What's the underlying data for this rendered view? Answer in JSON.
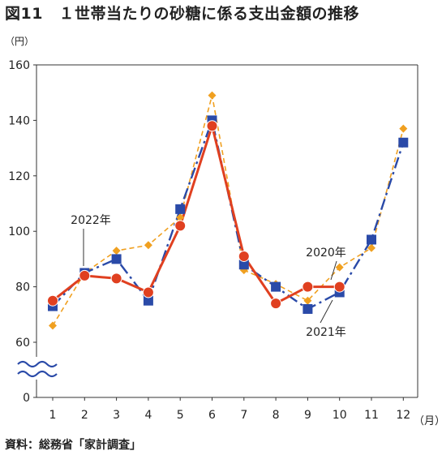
{
  "chart_data": {
    "type": "line",
    "title": "図11　１世帯当たりの砂糖に係る支出金額の推移",
    "y_unit": "（円）",
    "x_unit": "（月）",
    "source": "資料：総務省「家計調査」",
    "categories": [
      "1",
      "2",
      "3",
      "4",
      "5",
      "6",
      "7",
      "8",
      "9",
      "10",
      "11",
      "12"
    ],
    "y_ticks": [
      "0",
      "60",
      "80",
      "100",
      "120",
      "140",
      "160"
    ],
    "axis_break": true,
    "ylim": [
      60,
      160
    ],
    "grid": false,
    "series": [
      {
        "name": "2020年",
        "color": "#f0a020",
        "marker": "diamond",
        "dash": "dashed",
        "values": [
          66,
          85,
          93,
          95,
          105,
          149,
          86,
          81,
          75,
          87,
          94,
          137
        ]
      },
      {
        "name": "2021年",
        "color": "#2a4aa8",
        "marker": "square",
        "dash": "dashdot",
        "values": [
          73,
          85,
          90,
          75,
          108,
          140,
          88,
          80,
          72,
          78,
          97,
          132
        ]
      },
      {
        "name": "2022年",
        "color": "#e04020",
        "marker": "circle",
        "dash": "solid",
        "values": [
          75,
          84,
          83,
          78,
          102,
          138,
          91,
          74,
          80,
          80,
          null,
          null
        ]
      }
    ]
  }
}
